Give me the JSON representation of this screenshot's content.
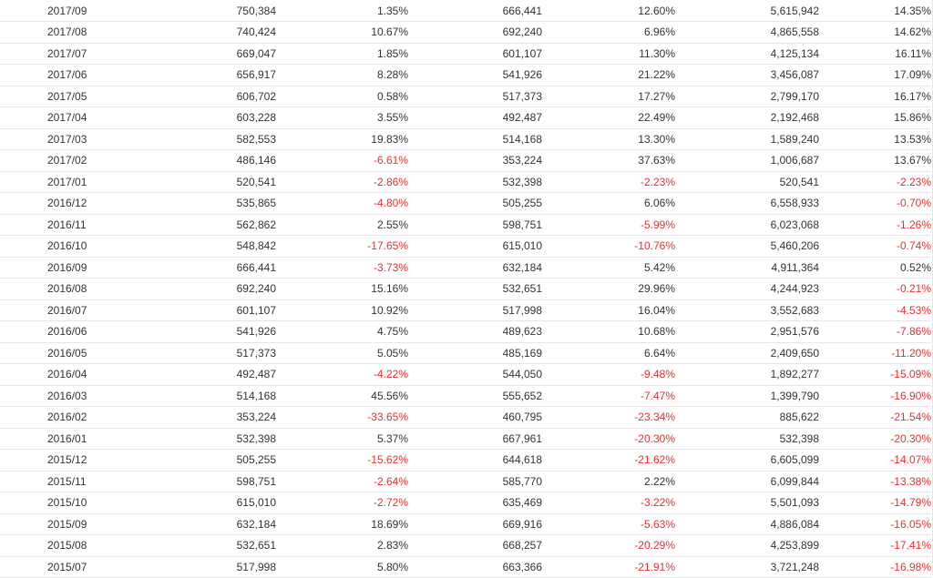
{
  "colors": {
    "text": "#333333",
    "negative": "#e8302f",
    "row_divider": "#e6e6e6"
  },
  "rows": [
    {
      "month": "2017/09",
      "v1": "750,384",
      "p1": "1.35%",
      "v2": "666,441",
      "p2": "12.60%",
      "v3": "5,615,942",
      "p3": "14.35%"
    },
    {
      "month": "2017/08",
      "v1": "740,424",
      "p1": "10.67%",
      "v2": "692,240",
      "p2": "6.96%",
      "v3": "4,865,558",
      "p3": "14.62%"
    },
    {
      "month": "2017/07",
      "v1": "669,047",
      "p1": "1.85%",
      "v2": "601,107",
      "p2": "11.30%",
      "v3": "4,125,134",
      "p3": "16.11%"
    },
    {
      "month": "2017/06",
      "v1": "656,917",
      "p1": "8.28%",
      "v2": "541,926",
      "p2": "21.22%",
      "v3": "3,456,087",
      "p3": "17.09%"
    },
    {
      "month": "2017/05",
      "v1": "606,702",
      "p1": "0.58%",
      "v2": "517,373",
      "p2": "17.27%",
      "v3": "2,799,170",
      "p3": "16.17%"
    },
    {
      "month": "2017/04",
      "v1": "603,228",
      "p1": "3.55%",
      "v2": "492,487",
      "p2": "22.49%",
      "v3": "2,192,468",
      "p3": "15.86%"
    },
    {
      "month": "2017/03",
      "v1": "582,553",
      "p1": "19.83%",
      "v2": "514,168",
      "p2": "13.30%",
      "v3": "1,589,240",
      "p3": "13.53%"
    },
    {
      "month": "2017/02",
      "v1": "486,146",
      "p1": "-6.61%",
      "v2": "353,224",
      "p2": "37.63%",
      "v3": "1,006,687",
      "p3": "13.67%"
    },
    {
      "month": "2017/01",
      "v1": "520,541",
      "p1": "-2.86%",
      "v2": "532,398",
      "p2": "-2.23%",
      "v3": "520,541",
      "p3": "-2.23%"
    },
    {
      "month": "2016/12",
      "v1": "535,865",
      "p1": "-4.80%",
      "v2": "505,255",
      "p2": "6.06%",
      "v3": "6,558,933",
      "p3": "-0.70%"
    },
    {
      "month": "2016/11",
      "v1": "562,862",
      "p1": "2.55%",
      "v2": "598,751",
      "p2": "-5.99%",
      "v3": "6,023,068",
      "p3": "-1.26%"
    },
    {
      "month": "2016/10",
      "v1": "548,842",
      "p1": "-17.65%",
      "v2": "615,010",
      "p2": "-10.76%",
      "v3": "5,460,206",
      "p3": "-0.74%"
    },
    {
      "month": "2016/09",
      "v1": "666,441",
      "p1": "-3.73%",
      "v2": "632,184",
      "p2": "5.42%",
      "v3": "4,911,364",
      "p3": "0.52%"
    },
    {
      "month": "2016/08",
      "v1": "692,240",
      "p1": "15.16%",
      "v2": "532,651",
      "p2": "29.96%",
      "v3": "4,244,923",
      "p3": "-0.21%"
    },
    {
      "month": "2016/07",
      "v1": "601,107",
      "p1": "10.92%",
      "v2": "517,998",
      "p2": "16.04%",
      "v3": "3,552,683",
      "p3": "-4.53%"
    },
    {
      "month": "2016/06",
      "v1": "541,926",
      "p1": "4.75%",
      "v2": "489,623",
      "p2": "10.68%",
      "v3": "2,951,576",
      "p3": "-7.86%"
    },
    {
      "month": "2016/05",
      "v1": "517,373",
      "p1": "5.05%",
      "v2": "485,169",
      "p2": "6.64%",
      "v3": "2,409,650",
      "p3": "-11.20%"
    },
    {
      "month": "2016/04",
      "v1": "492,487",
      "p1": "-4.22%",
      "v2": "544,050",
      "p2": "-9.48%",
      "v3": "1,892,277",
      "p3": "-15.09%"
    },
    {
      "month": "2016/03",
      "v1": "514,168",
      "p1": "45.56%",
      "v2": "555,652",
      "p2": "-7.47%",
      "v3": "1,399,790",
      "p3": "-16.90%"
    },
    {
      "month": "2016/02",
      "v1": "353,224",
      "p1": "-33.65%",
      "v2": "460,795",
      "p2": "-23.34%",
      "v3": "885,622",
      "p3": "-21.54%"
    },
    {
      "month": "2016/01",
      "v1": "532,398",
      "p1": "5.37%",
      "v2": "667,961",
      "p2": "-20.30%",
      "v3": "532,398",
      "p3": "-20.30%"
    },
    {
      "month": "2015/12",
      "v1": "505,255",
      "p1": "-15.62%",
      "v2": "644,618",
      "p2": "-21.62%",
      "v3": "6,605,099",
      "p3": "-14.07%"
    },
    {
      "month": "2015/11",
      "v1": "598,751",
      "p1": "-2.64%",
      "v2": "585,770",
      "p2": "2.22%",
      "v3": "6,099,844",
      "p3": "-13.38%"
    },
    {
      "month": "2015/10",
      "v1": "615,010",
      "p1": "-2.72%",
      "v2": "635,469",
      "p2": "-3.22%",
      "v3": "5,501,093",
      "p3": "-14.79%"
    },
    {
      "month": "2015/09",
      "v1": "632,184",
      "p1": "18.69%",
      "v2": "669,916",
      "p2": "-5.63%",
      "v3": "4,886,084",
      "p3": "-16.05%"
    },
    {
      "month": "2015/08",
      "v1": "532,651",
      "p1": "2.83%",
      "v2": "668,257",
      "p2": "-20.29%",
      "v3": "4,253,899",
      "p3": "-17.41%"
    },
    {
      "month": "2015/07",
      "v1": "517,998",
      "p1": "5.80%",
      "v2": "663,366",
      "p2": "-21.91%",
      "v3": "3,721,248",
      "p3": "-16.98%"
    }
  ]
}
